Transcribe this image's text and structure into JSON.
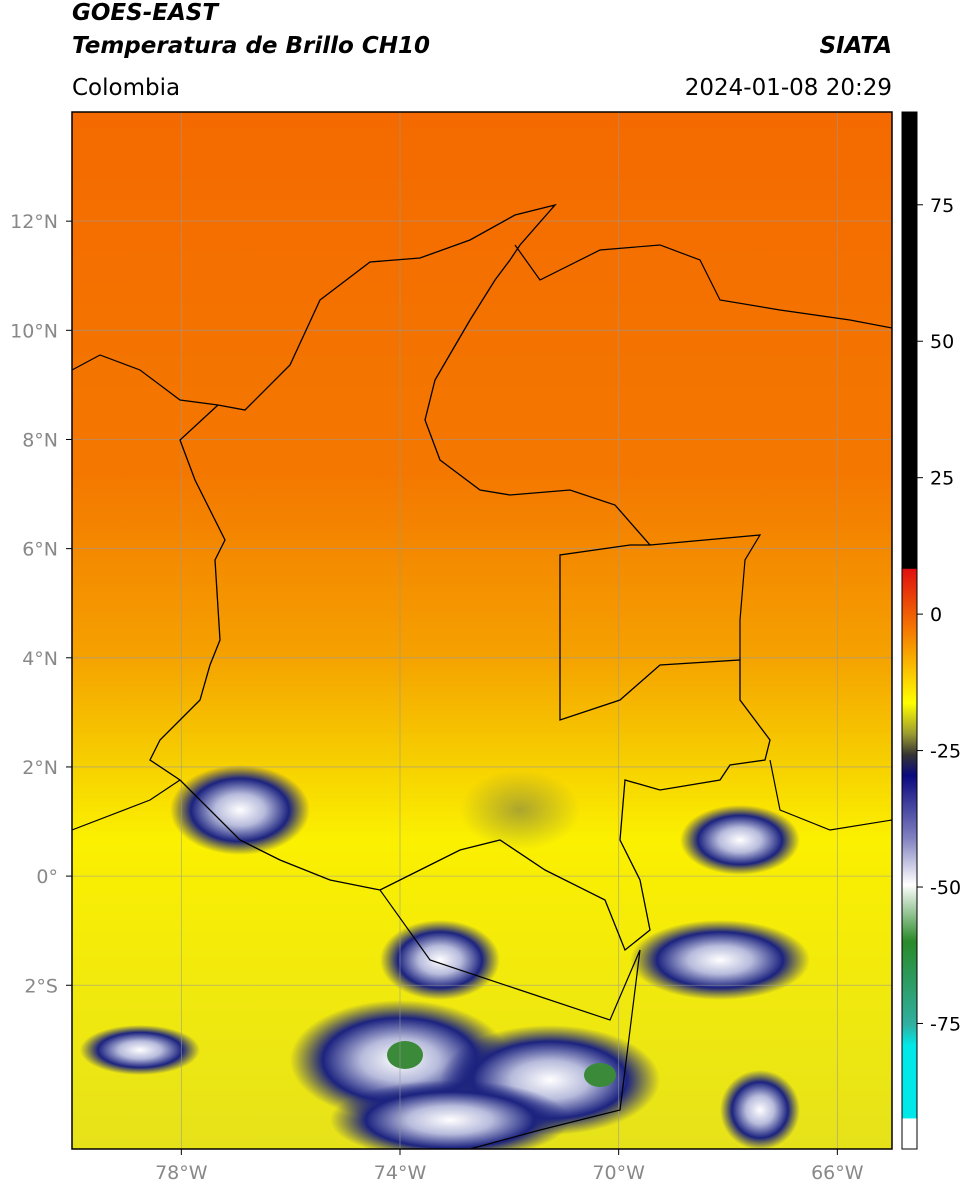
{
  "header": {
    "title": "GOES-EAST",
    "subtitle": "Temperatura de Brillo CH10",
    "source": "SIATA",
    "region": "Colombia",
    "datetime": "2024-01-08 20:29"
  },
  "map": {
    "xlim": [
      -80,
      -65
    ],
    "ylim": [
      -5,
      14
    ],
    "xticks": [
      {
        "value": -78,
        "label": "78°W"
      },
      {
        "value": -74,
        "label": "74°W"
      },
      {
        "value": -70,
        "label": "70°W"
      },
      {
        "value": -66,
        "label": "66°W"
      }
    ],
    "yticks": [
      {
        "value": 12,
        "label": "12°N"
      },
      {
        "value": 10,
        "label": "10°N"
      },
      {
        "value": 8,
        "label": "8°N"
      },
      {
        "value": 6,
        "label": "6°N"
      },
      {
        "value": 4,
        "label": "4°N"
      },
      {
        "value": 2,
        "label": "2°N"
      },
      {
        "value": 0,
        "label": "0°"
      },
      {
        "value": -2,
        "label": "2°S"
      }
    ],
    "grid": true
  },
  "colorbar": {
    "range": [
      -98,
      92
    ],
    "ticks": [
      75,
      50,
      25,
      0,
      -25,
      -50,
      -75
    ]
  }
}
